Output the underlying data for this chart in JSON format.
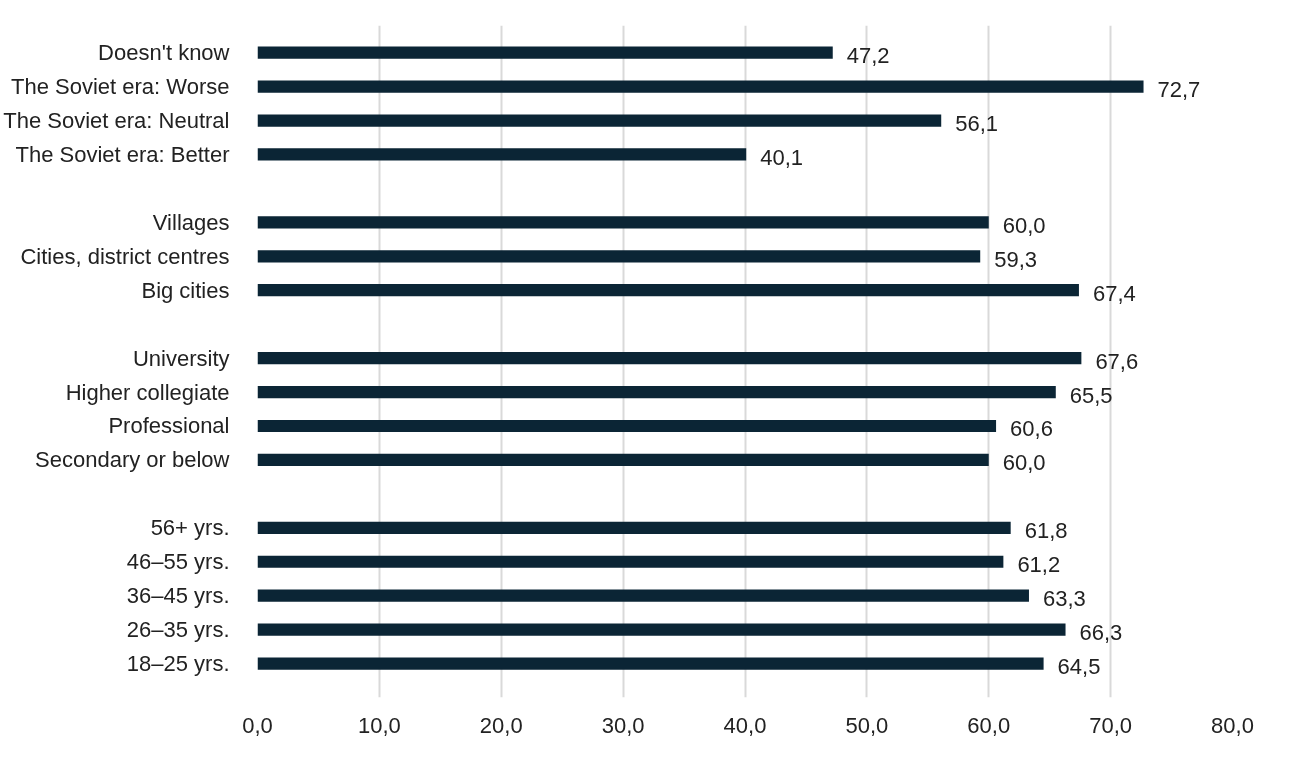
{
  "chart_data": {
    "type": "bar",
    "orientation": "horizontal",
    "categories": [
      "Doesn't know",
      "The Soviet era: Worse",
      "The Soviet era: Neutral",
      "The Soviet era: Better",
      null,
      "Villages",
      "Cities, district centres",
      "Big cities",
      null,
      "University",
      "Higher collegiate",
      "Professional",
      "Secondary or below",
      null,
      "56+ yrs.",
      "46–55 yrs.",
      "36–45 yrs.",
      "26–35 yrs.",
      "18–25 yrs."
    ],
    "values": [
      47.2,
      72.7,
      56.1,
      40.1,
      null,
      60.0,
      59.3,
      67.4,
      null,
      67.6,
      65.5,
      60.6,
      60.0,
      null,
      61.8,
      61.2,
      63.3,
      66.3,
      64.5
    ],
    "value_labels": [
      "47,2",
      "72,7",
      "56,1",
      "40,1",
      null,
      "60,0",
      "59,3",
      "67,4",
      null,
      "67,6",
      "65,5",
      "60,6",
      "60,0",
      null,
      "61,8",
      "61,2",
      "63,3",
      "66,3",
      "64,5"
    ],
    "color": "#0b2535",
    "xlim": [
      0,
      80
    ],
    "xticks": [
      {
        "value": 0,
        "label": "0,0"
      },
      {
        "value": 10,
        "label": "10,0"
      },
      {
        "value": 20,
        "label": "20,0"
      },
      {
        "value": 30,
        "label": "30,0"
      },
      {
        "value": 40,
        "label": "40,0"
      },
      {
        "value": 50,
        "label": "50,0"
      },
      {
        "value": 60,
        "label": "60,0"
      },
      {
        "value": 70,
        "label": "70,0"
      },
      {
        "value": 80,
        "label": "80,0"
      }
    ],
    "grid": "x"
  }
}
